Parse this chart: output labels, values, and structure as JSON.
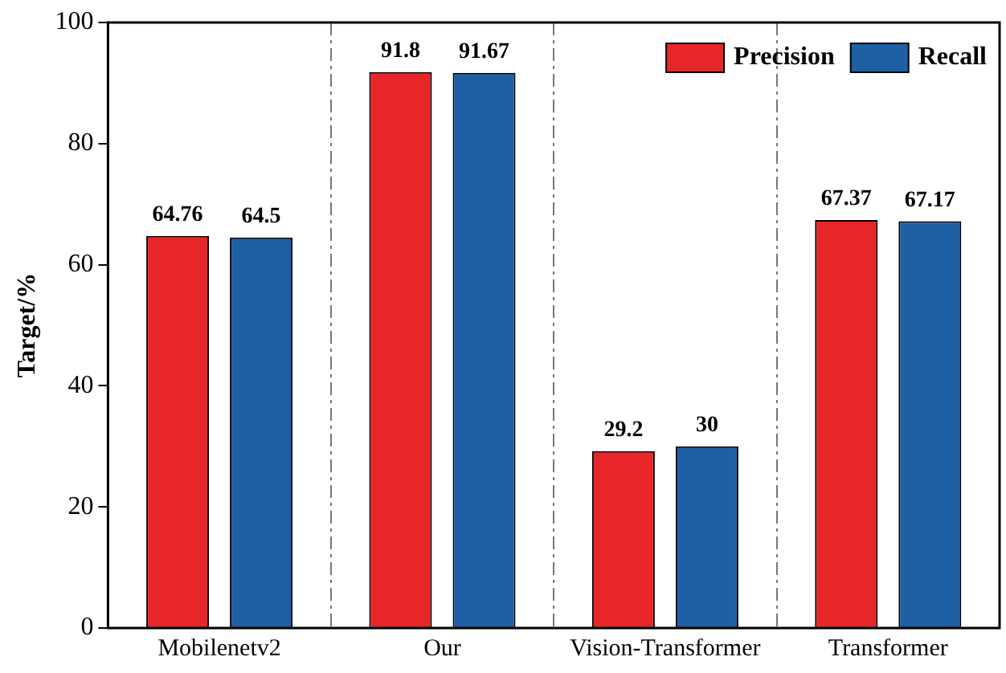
{
  "chart_data": {
    "type": "bar",
    "ylabel": "Target/%",
    "categories": [
      "Mobilenetv2",
      "Our",
      "Vision-Transformer",
      "Transformer"
    ],
    "series": [
      {
        "name": "Precision",
        "color": "#e8262a",
        "values": [
          64.76,
          91.8,
          29.2,
          67.37
        ]
      },
      {
        "name": "Recall",
        "color": "#1f5fa6",
        "values": [
          64.5,
          91.67,
          30,
          67.17
        ]
      }
    ],
    "ylim": [
      0,
      100
    ],
    "yticks": [
      0,
      20,
      40,
      60,
      80,
      100
    ],
    "grid": "x",
    "legend": "top right",
    "data_labels": true
  }
}
